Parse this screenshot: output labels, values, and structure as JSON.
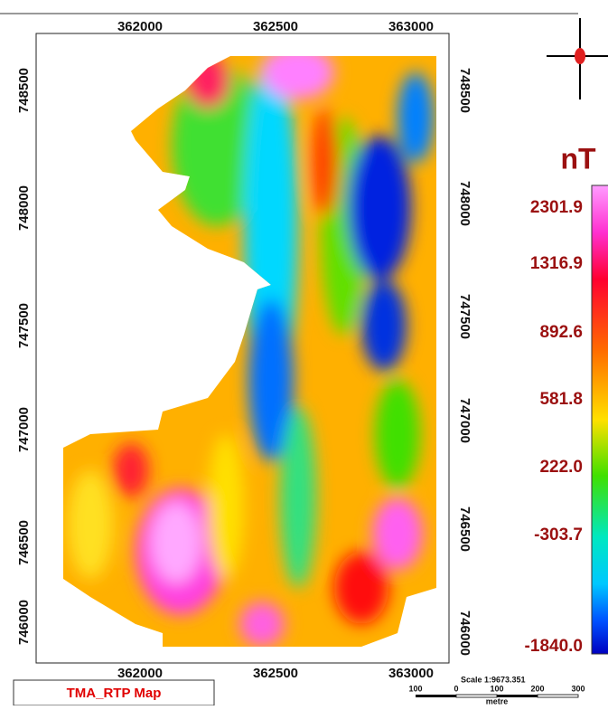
{
  "map": {
    "title": "TMA_RTP Map",
    "x_labels": [
      "362000",
      "362500",
      "363000"
    ],
    "y_labels": [
      "748500",
      "748000",
      "747500",
      "747000",
      "746500",
      "746000"
    ],
    "legend": {
      "unit": "nT",
      "labels": [
        "2301.9",
        "1316.9",
        "892.6",
        "581.8",
        "222.0",
        "-303.7",
        "-1840.0"
      ]
    },
    "scale": {
      "text": "Scale 1:9673.351",
      "ticks": [
        "100",
        "0",
        "100",
        "200",
        "300"
      ],
      "unit": "metre"
    }
  }
}
